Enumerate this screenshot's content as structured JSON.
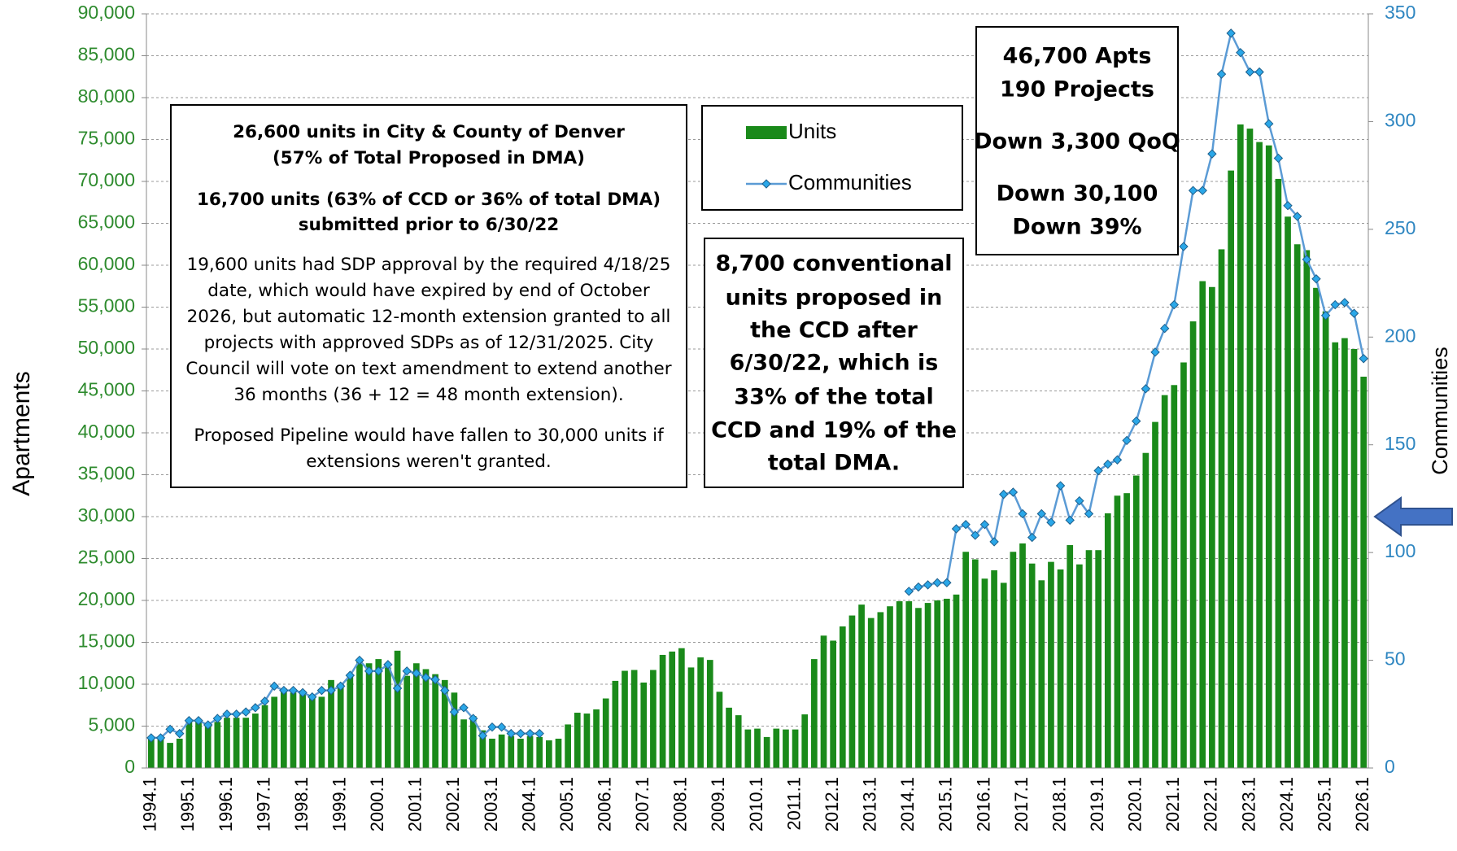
{
  "chart_data": {
    "type": "bar_line",
    "y_label": "Apartments",
    "y2_label": "Communities",
    "categories": [
      "1994.1",
      null,
      null,
      null,
      "1995.1",
      null,
      null,
      null,
      "1996.1",
      null,
      null,
      null,
      "1997.1",
      null,
      null,
      null,
      "1998.1",
      null,
      null,
      null,
      "1999.1",
      null,
      null,
      null,
      "2000.1",
      null,
      null,
      null,
      "2001.1",
      null,
      null,
      null,
      "2002.1",
      null,
      null,
      null,
      "2003.1",
      null,
      null,
      null,
      "2004.1",
      null,
      null,
      null,
      "2005.1",
      null,
      null,
      null,
      "2006.1",
      null,
      null,
      null,
      "2007.1",
      null,
      null,
      null,
      "2008.1",
      null,
      null,
      null,
      "2009.1",
      null,
      null,
      null,
      "2010.1",
      null,
      null,
      null,
      "2011.1",
      null,
      null,
      null,
      "2012.1",
      null,
      null,
      null,
      "2013.1",
      null,
      null,
      null,
      "2014.1",
      null,
      null,
      null,
      "2015.1",
      null,
      null,
      null,
      "2016.1",
      null,
      null,
      null,
      "2017.1",
      null,
      null,
      null,
      "2018.1",
      null,
      null,
      null,
      "2019.1",
      null,
      null,
      null,
      "2020.1",
      null,
      null,
      null,
      "2021.1",
      null,
      null,
      null,
      "2022.1",
      null,
      null,
      null,
      "2023.1",
      null,
      null,
      null,
      "2024.1",
      null,
      null,
      null,
      "2025.1",
      null,
      null,
      null,
      "2026.1"
    ],
    "series": [
      {
        "name": "Units",
        "kind": "bar",
        "color": "#1a8a1a",
        "values": [
          3500,
          3500,
          3000,
          3500,
          5500,
          5500,
          5000,
          5500,
          6000,
          6000,
          6000,
          6500,
          7500,
          8500,
          9500,
          9000,
          9000,
          8500,
          8500,
          10500,
          10000,
          11000,
          12800,
          12500,
          13000,
          12000,
          14000,
          11000,
          12500,
          11800,
          11200,
          10500,
          9000,
          5800,
          6200,
          4500,
          3500,
          4000,
          3800,
          3500,
          3800,
          3700,
          3300,
          3500,
          5200,
          6600,
          6500,
          7000,
          8300,
          10400,
          11600,
          11700,
          10200,
          11700,
          13500,
          13900,
          14300,
          12000,
          13200,
          12900,
          9100,
          7200,
          6300,
          4600,
          4700,
          3700,
          4700,
          4600,
          4600,
          6400,
          13000,
          15800,
          15200,
          16900,
          18200,
          19500,
          17900,
          18600,
          19300,
          19900,
          19900,
          19100,
          19700,
          20000,
          20200,
          20700,
          25800,
          24900,
          22600,
          23600,
          22100,
          25800,
          26800,
          24400,
          22400,
          24600,
          23700,
          26600,
          24300,
          26000,
          26000,
          30400,
          32500,
          32800,
          34900,
          37600,
          41300,
          44500,
          45700,
          48400,
          53300,
          58100,
          57400,
          61900,
          71300,
          76800,
          76300,
          74700,
          74300,
          70300,
          65800,
          62500,
          61800,
          57300,
          54500,
          50800,
          51300,
          50000,
          46700
        ]
      },
      {
        "name": "Communities",
        "kind": "line",
        "axis": "y2",
        "color": "#5b9bd5",
        "values": [
          14,
          14,
          18,
          16,
          22,
          22,
          20,
          23,
          25,
          25,
          26,
          28,
          31,
          38,
          36,
          36,
          35,
          33,
          36,
          36,
          38,
          43,
          50,
          45,
          45,
          48,
          37,
          45,
          44,
          42,
          41,
          36,
          26,
          28,
          23,
          15,
          19,
          19,
          16,
          16,
          16,
          16,
          null,
          null,
          null,
          null,
          null,
          null,
          null,
          null,
          null,
          null,
          null,
          null,
          null,
          null,
          null,
          null,
          null,
          null,
          null,
          null,
          null,
          null,
          null,
          null,
          null,
          null,
          null,
          null,
          null,
          null,
          null,
          null,
          null,
          null,
          null,
          null,
          null,
          null,
          82,
          84,
          85,
          86,
          86,
          111,
          113,
          108,
          113,
          105,
          127,
          128,
          118,
          107,
          118,
          114,
          131,
          115,
          124,
          118,
          138,
          141,
          143,
          152,
          161,
          176,
          193,
          204,
          215,
          242,
          268,
          268,
          285,
          322,
          341,
          332,
          323,
          323,
          299,
          283,
          261,
          256,
          236,
          227,
          210,
          215,
          216,
          211,
          190
        ]
      }
    ],
    "ylim": [
      0,
      90000
    ],
    "yticks": [
      0,
      {
        "value": 5000,
        "label": "5,000"
      },
      {
        "value": 10000,
        "label": "10,000"
      },
      {
        "value": 15000,
        "label": "15,000"
      },
      {
        "value": 20000,
        "label": "20,000"
      },
      {
        "value": 25000,
        "label": "25,000"
      },
      {
        "value": 30000,
        "label": "30,000"
      },
      {
        "value": 35000,
        "label": "35,000"
      },
      {
        "value": 40000,
        "label": "40,000"
      },
      {
        "value": 45000,
        "label": "45,000"
      },
      {
        "value": 50000,
        "label": "50,000"
      },
      {
        "value": 55000,
        "label": "55,000"
      },
      {
        "value": 60000,
        "label": "60,000"
      },
      {
        "value": 65000,
        "label": "65,000"
      },
      {
        "value": 70000,
        "label": "70,000"
      },
      {
        "value": 75000,
        "label": "75,000"
      },
      {
        "value": 80000,
        "label": "80,000"
      },
      {
        "value": 85000,
        "label": "85,000"
      },
      {
        "value": 90000,
        "label": "90,000"
      }
    ],
    "y2lim": [
      0,
      350
    ],
    "y2ticks": [
      0,
      50,
      100,
      150,
      200,
      250,
      300,
      350
    ],
    "grid": true,
    "annotations": [
      {
        "paragraphs": [
          [
            "26,600 units in City & County of Denver",
            "(57% of Total Proposed in DMA)"
          ],
          [
            "16,700 units (63% of CCD or 36% of total DMA)",
            "submitted prior to 6/30/22"
          ],
          [
            "19,600 units had SDP approval by the required 4/18/25",
            "date, which would have expired by end of October",
            "2026, but automatic 12-month extension granted to all",
            "projects with approved SDPs as of 12/31/2025. City",
            "Council will vote on text amendment to extend another",
            "36 months (36 + 12 = 48 month extension)."
          ],
          [
            "Proposed Pipeline would have fallen to 30,000 units if",
            "extensions weren't granted."
          ]
        ]
      },
      {
        "paragraphs": [
          [
            "8,700 conventional",
            "units proposed in",
            "the CCD after",
            "6/30/22, which is",
            "33% of the total",
            "CCD and 19% of the",
            "total DMA."
          ]
        ]
      },
      {
        "paragraphs": [
          [
            "46,700 Apts",
            "190 Projects"
          ],
          [
            "Down 3,300 QoQ"
          ],
          [
            "Down 30,100",
            "Down 39%"
          ]
        ]
      }
    ]
  }
}
